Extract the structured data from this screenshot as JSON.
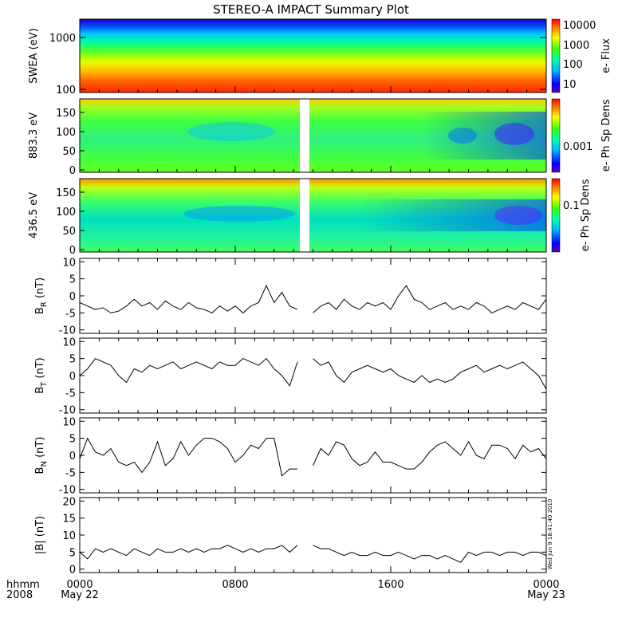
{
  "title": "STEREO-A IMPACT Summary Plot",
  "stamp": "Wed Jun  9 18:41:40 2010",
  "xaxis": {
    "row1_label": "hhmm",
    "row2_label": "2008",
    "ticks": [
      {
        "hours": 0,
        "time": "0000",
        "date": "May 22"
      },
      {
        "hours": 8,
        "time": "0800",
        "date": ""
      },
      {
        "hours": 16,
        "time": "1600",
        "date": ""
      },
      {
        "hours": 24,
        "time": "0000",
        "date": "May 23"
      }
    ],
    "range_hours": [
      0,
      24
    ]
  },
  "data_gap_hours": [
    11.2,
    11.6
  ],
  "chart_data": [
    {
      "type": "heatmap",
      "id": "swea",
      "ylabel": "SWEA (eV)",
      "yscale": "log",
      "ylim": [
        95,
        2000
      ],
      "yticks": [
        100,
        1000
      ],
      "ytick_labels": [
        "100",
        "1000"
      ],
      "colorbar_label": "e- Flux",
      "colorbar_scale": "log",
      "colorbar_range": [
        3,
        20000
      ],
      "colorbar_ticks": [
        10,
        100,
        1000,
        10000
      ],
      "colorbar_tick_labels": [
        "10",
        "100",
        "1000",
        "10000"
      ]
    },
    {
      "type": "heatmap",
      "id": "pad883",
      "ylabel": "883.3 eV",
      "ylim": [
        0,
        180
      ],
      "yticks": [
        0,
        50,
        100,
        150
      ],
      "ytick_labels": [
        "0",
        "50",
        "100",
        "150"
      ],
      "colorbar_label": "e- Ph Sp Dens",
      "colorbar_scale": "log",
      "colorbar_ticks": [
        0.001
      ],
      "colorbar_tick_labels": [
        "0.001"
      ]
    },
    {
      "type": "heatmap",
      "id": "pad436",
      "ylabel": "436.5 eV",
      "ylim": [
        0,
        180
      ],
      "yticks": [
        0,
        50,
        100,
        150
      ],
      "ytick_labels": [
        "0",
        "50",
        "100",
        "150"
      ],
      "colorbar_label": "e- Ph Sp Dens",
      "colorbar_scale": "log",
      "colorbar_ticks": [
        0.1
      ],
      "colorbar_tick_labels": [
        "0.1"
      ]
    },
    {
      "type": "line",
      "id": "br",
      "ylabel": "B_R (nT)",
      "ylim": [
        -11,
        11
      ],
      "yticks": [
        -10,
        -5,
        0,
        5,
        10
      ],
      "ytick_labels": [
        "-10",
        "-5",
        "0",
        "5",
        "10"
      ],
      "x": [
        0,
        0.4,
        0.8,
        1.2,
        1.6,
        2.0,
        2.4,
        2.8,
        3.2,
        3.6,
        4.0,
        4.4,
        4.8,
        5.2,
        5.6,
        6.0,
        6.4,
        6.8,
        7.2,
        7.6,
        8.0,
        8.4,
        8.8,
        9.2,
        9.6,
        10.0,
        10.4,
        10.8,
        11.2,
        11.6,
        12.0,
        12.4,
        12.8,
        13.2,
        13.6,
        14.0,
        14.4,
        14.8,
        15.2,
        15.6,
        16.0,
        16.4,
        16.8,
        17.2,
        17.6,
        18.0,
        18.4,
        18.8,
        19.2,
        19.6,
        20.0,
        20.4,
        20.8,
        21.2,
        21.6,
        22.0,
        22.4,
        22.8,
        23.2,
        23.6,
        24.0
      ],
      "y": [
        -2,
        -3,
        -4,
        -3.5,
        -5,
        -4.5,
        -3,
        -1,
        -3,
        -2,
        -4,
        -1.5,
        -3,
        -4,
        -2,
        -3.5,
        -4,
        -5,
        -3,
        -4.5,
        -3,
        -5,
        -3,
        -2,
        3,
        -2,
        1,
        -3,
        -4,
        null,
        -5,
        -3,
        -2,
        -4,
        -1,
        -3,
        -4,
        -2,
        -3,
        -2,
        -4,
        0,
        3,
        -1,
        -2,
        -4,
        -3,
        -2,
        -4,
        -3,
        -4,
        -2,
        -3,
        -5,
        -4,
        -3,
        -4,
        -2,
        -3,
        -4,
        -1
      ]
    },
    {
      "type": "line",
      "id": "bt",
      "ylabel": "B_T (nT)",
      "ylim": [
        -11,
        11
      ],
      "yticks": [
        -10,
        -5,
        0,
        5,
        10
      ],
      "ytick_labels": [
        "-10",
        "-5",
        "0",
        "5",
        "10"
      ],
      "x": [
        0,
        0.4,
        0.8,
        1.2,
        1.6,
        2.0,
        2.4,
        2.8,
        3.2,
        3.6,
        4.0,
        4.4,
        4.8,
        5.2,
        5.6,
        6.0,
        6.4,
        6.8,
        7.2,
        7.6,
        8.0,
        8.4,
        8.8,
        9.2,
        9.6,
        10.0,
        10.4,
        10.8,
        11.2,
        11.6,
        12.0,
        12.4,
        12.8,
        13.2,
        13.6,
        14.0,
        14.4,
        14.8,
        15.2,
        15.6,
        16.0,
        16.4,
        16.8,
        17.2,
        17.6,
        18.0,
        18.4,
        18.8,
        19.2,
        19.6,
        20.0,
        20.4,
        20.8,
        21.2,
        21.6,
        22.0,
        22.4,
        22.8,
        23.2,
        23.6,
        24.0
      ],
      "y": [
        0,
        2,
        5,
        4,
        3,
        0,
        -2,
        2,
        1,
        3,
        2,
        3,
        4,
        2,
        3,
        4,
        3,
        2,
        4,
        3,
        3,
        5,
        4,
        3,
        5,
        2,
        0,
        -3,
        4,
        null,
        5,
        3,
        4,
        0,
        -2,
        1,
        2,
        3,
        2,
        1,
        2,
        0,
        -1,
        -2,
        0,
        -2,
        -1,
        -2,
        -1,
        1,
        2,
        3,
        1,
        2,
        3,
        2,
        3,
        4,
        2,
        0,
        -4
      ]
    },
    {
      "type": "line",
      "id": "bn",
      "ylabel": "B_N (nT)",
      "ylim": [
        -11,
        11
      ],
      "yticks": [
        -10,
        -5,
        0,
        5,
        10
      ],
      "ytick_labels": [
        "-10",
        "-5",
        "0",
        "5",
        "10"
      ],
      "x": [
        0,
        0.4,
        0.8,
        1.2,
        1.6,
        2.0,
        2.4,
        2.8,
        3.2,
        3.6,
        4.0,
        4.4,
        4.8,
        5.2,
        5.6,
        6.0,
        6.4,
        6.8,
        7.2,
        7.6,
        8.0,
        8.4,
        8.8,
        9.2,
        9.6,
        10.0,
        10.4,
        10.8,
        11.2,
        11.6,
        12.0,
        12.4,
        12.8,
        13.2,
        13.6,
        14.0,
        14.4,
        14.8,
        15.2,
        15.6,
        16.0,
        16.4,
        16.8,
        17.2,
        17.6,
        18.0,
        18.4,
        18.8,
        19.2,
        19.6,
        20.0,
        20.4,
        20.8,
        21.2,
        21.6,
        22.0,
        22.4,
        22.8,
        23.2,
        23.6,
        24.0
      ],
      "y": [
        -1,
        5,
        1,
        0,
        2,
        -2,
        -3,
        -2,
        -5,
        -2,
        4,
        -3,
        -1,
        4,
        0,
        3,
        5,
        5,
        4,
        2,
        -2,
        0,
        3,
        2,
        5,
        5,
        -6,
        -4,
        -4,
        null,
        -3,
        2,
        0,
        4,
        3,
        -1,
        -3,
        -2,
        1,
        -2,
        -2,
        -3,
        -4,
        -4,
        -2,
        1,
        3,
        4,
        2,
        0,
        4,
        0,
        -1,
        3,
        3,
        2,
        -1,
        3,
        1,
        2,
        -1
      ]
    },
    {
      "type": "line",
      "id": "btot",
      "ylabel": "|B| (nT)",
      "ylim": [
        -1,
        21
      ],
      "yticks": [
        0,
        5,
        10,
        15,
        20
      ],
      "ytick_labels": [
        "0",
        "5",
        "10",
        "15",
        "20"
      ],
      "x": [
        0,
        0.4,
        0.8,
        1.2,
        1.6,
        2.0,
        2.4,
        2.8,
        3.2,
        3.6,
        4.0,
        4.4,
        4.8,
        5.2,
        5.6,
        6.0,
        6.4,
        6.8,
        7.2,
        7.6,
        8.0,
        8.4,
        8.8,
        9.2,
        9.6,
        10.0,
        10.4,
        10.8,
        11.2,
        11.6,
        12.0,
        12.4,
        12.8,
        13.2,
        13.6,
        14.0,
        14.4,
        14.8,
        15.2,
        15.6,
        16.0,
        16.4,
        16.8,
        17.2,
        17.6,
        18.0,
        18.4,
        18.8,
        19.2,
        19.6,
        20.0,
        20.4,
        20.8,
        21.2,
        21.6,
        22.0,
        22.4,
        22.8,
        23.2,
        23.6,
        24.0
      ],
      "y": [
        5,
        3,
        6,
        5,
        6,
        5,
        4,
        6,
        5,
        4,
        6,
        5,
        5,
        6,
        5,
        6,
        5,
        6,
        6,
        7,
        6,
        5,
        6,
        5,
        6,
        6,
        7,
        5,
        7,
        null,
        7,
        6,
        6,
        5,
        4,
        5,
        4,
        4,
        5,
        4,
        4,
        5,
        4,
        3,
        4,
        4,
        3,
        4,
        3,
        2,
        5,
        4,
        5,
        5,
        4,
        5,
        5,
        4,
        5,
        5,
        4
      ]
    }
  ],
  "colors": {
    "axis": "#000000",
    "line": "#000000",
    "background": "#ffffff"
  }
}
